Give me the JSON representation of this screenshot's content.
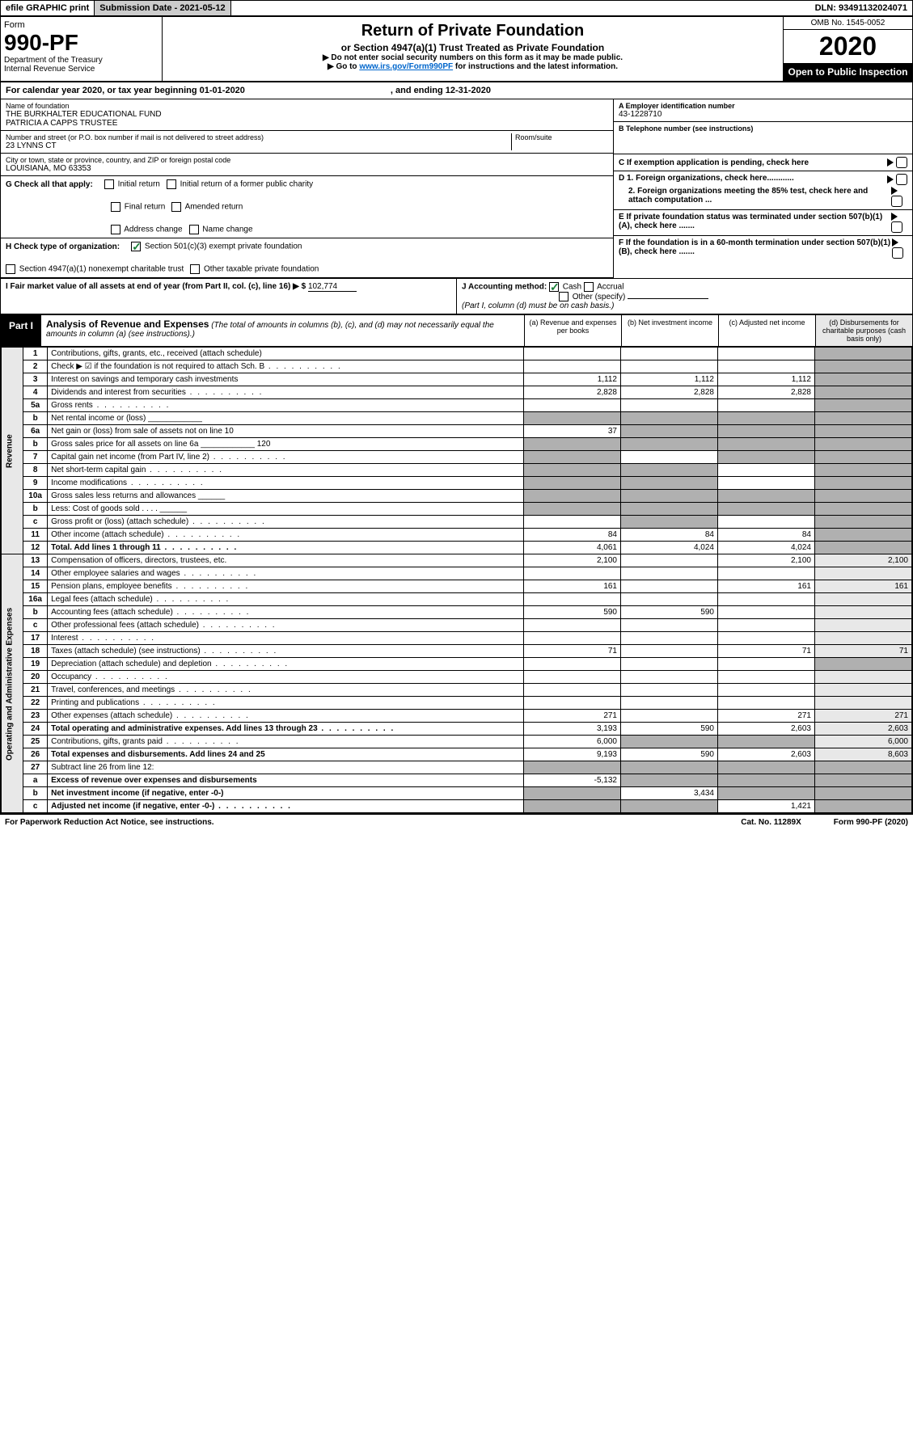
{
  "top": {
    "efile": "efile GRAPHIC print",
    "submission": "Submission Date - 2021-05-12",
    "dln": "DLN: 93491132024071"
  },
  "header": {
    "form_label": "Form",
    "form_number": "990-PF",
    "dept1": "Department of the Treasury",
    "dept2": "Internal Revenue Service",
    "title": "Return of Private Foundation",
    "subtitle": "or Section 4947(a)(1) Trust Treated as Private Foundation",
    "instr1": "▶ Do not enter social security numbers on this form as it may be made public.",
    "instr2": "▶ Go to ",
    "instr_link": "www.irs.gov/Form990PF",
    "instr3": " for instructions and the latest information.",
    "omb": "OMB No. 1545-0052",
    "year": "2020",
    "open": "Open to Public Inspection"
  },
  "cal": {
    "text1": "For calendar year 2020, or tax year beginning 01-01-2020",
    "text2": ", and ending 12-31-2020"
  },
  "id": {
    "name_lbl": "Name of foundation",
    "name1": "THE BURKHALTER EDUCATIONAL FUND",
    "name2": "PATRICIA A CAPPS TRUSTEE",
    "addr_lbl": "Number and street (or P.O. box number if mail is not delivered to street address)",
    "addr": "23 LYNNS CT",
    "room_lbl": "Room/suite",
    "city_lbl": "City or town, state or province, country, and ZIP or foreign postal code",
    "city": "LOUISIANA, MO  63353",
    "ein_lbl": "A Employer identification number",
    "ein": "43-1228710",
    "phone_lbl": "B Telephone number (see instructions)",
    "c_lbl": "C If exemption application is pending, check here",
    "d1_lbl": "D 1. Foreign organizations, check here............",
    "d2_lbl": "2. Foreign organizations meeting the 85% test, check here and attach computation ...",
    "e_lbl": "E  If private foundation status was terminated under section 507(b)(1)(A), check here .......",
    "f_lbl": "F  If the foundation is in a 60-month termination under section 507(b)(1)(B), check here ......."
  },
  "g": {
    "lbl": "G Check all that apply:",
    "opts": [
      "Initial return",
      "Initial return of a former public charity",
      "Final return",
      "Amended return",
      "Address change",
      "Name change"
    ]
  },
  "h": {
    "lbl": "H Check type of organization:",
    "o1": "Section 501(c)(3) exempt private foundation",
    "o2": "Section 4947(a)(1) nonexempt charitable trust",
    "o3": "Other taxable private foundation"
  },
  "i": {
    "lbl": "I Fair market value of all assets at end of year (from Part II, col. (c), line 16) ▶ $",
    "val": "102,774"
  },
  "j": {
    "lbl": "J Accounting method:",
    "o1": "Cash",
    "o2": "Accrual",
    "o3": "Other (specify)",
    "note": "(Part I, column (d) must be on cash basis.)"
  },
  "part1": {
    "tag": "Part I",
    "title": "Analysis of Revenue and Expenses",
    "note": "(The total of amounts in columns (b), (c), and (d) may not necessarily equal the amounts in column (a) (see instructions).)",
    "colA": "(a)    Revenue and expenses per books",
    "colB": "(b)   Net investment income",
    "colC": "(c)   Adjusted net income",
    "colD": "(d)   Disbursements for charitable purposes (cash basis only)"
  },
  "revenue_label": "Revenue",
  "expenses_label": "Operating and Administrative Expenses",
  "rows": [
    {
      "n": "1",
      "d": "Contributions, gifts, grants, etc., received (attach schedule)",
      "a": "",
      "b": "",
      "c": "",
      "dS": true
    },
    {
      "n": "2",
      "d": "Check ▶ ☑ if the foundation is not required to attach Sch. B",
      "dots": true,
      "a": "",
      "b": "",
      "c": "",
      "dS": true
    },
    {
      "n": "3",
      "d": "Interest on savings and temporary cash investments",
      "a": "1,112",
      "b": "1,112",
      "c": "1,112",
      "dS": true
    },
    {
      "n": "4",
      "d": "Dividends and interest from securities",
      "dots": true,
      "a": "2,828",
      "b": "2,828",
      "c": "2,828",
      "dS": true
    },
    {
      "n": "5a",
      "d": "Gross rents",
      "dots": true,
      "a": "",
      "b": "",
      "c": "",
      "dS": true
    },
    {
      "n": "b",
      "d": "Net rental income or (loss)  ____________",
      "aS": true,
      "bS": true,
      "cS": true,
      "dS": true
    },
    {
      "n": "6a",
      "d": "Net gain or (loss) from sale of assets not on line 10",
      "a": "37",
      "bS": true,
      "cS": true,
      "dS": true
    },
    {
      "n": "b",
      "d": "Gross sales price for all assets on line 6a ____________ 120",
      "aS": true,
      "bS": true,
      "cS": true,
      "dS": true
    },
    {
      "n": "7",
      "d": "Capital gain net income (from Part IV, line 2)",
      "dots": true,
      "aS": true,
      "b": "",
      "cS": true,
      "dS": true
    },
    {
      "n": "8",
      "d": "Net short-term capital gain",
      "dots": true,
      "aS": true,
      "bS": true,
      "c": "",
      "dS": true
    },
    {
      "n": "9",
      "d": "Income modifications",
      "dots": true,
      "aS": true,
      "bS": true,
      "c": "",
      "dS": true
    },
    {
      "n": "10a",
      "d": "Gross sales less returns and allowances  ______",
      "aS": true,
      "bS": true,
      "cS": true,
      "dS": true
    },
    {
      "n": "b",
      "d": "Less: Cost of goods sold   . . . .  ______",
      "aS": true,
      "bS": true,
      "cS": true,
      "dS": true
    },
    {
      "n": "c",
      "d": "Gross profit or (loss) (attach schedule)",
      "dots": true,
      "a": "",
      "bS": true,
      "c": "",
      "dS": true
    },
    {
      "n": "11",
      "d": "Other income (attach schedule)",
      "dots": true,
      "a": "84",
      "b": "84",
      "c": "84",
      "dS": true
    },
    {
      "n": "12",
      "d": "Total. Add lines 1 through 11",
      "dots": true,
      "bold": true,
      "a": "4,061",
      "b": "4,024",
      "c": "4,024",
      "dS": true
    }
  ],
  "exp_rows": [
    {
      "n": "13",
      "d": "Compensation of officers, directors, trustees, etc.",
      "a": "2,100",
      "b": "",
      "c": "2,100",
      "dd": "2,100"
    },
    {
      "n": "14",
      "d": "Other employee salaries and wages",
      "dots": true,
      "a": "",
      "b": "",
      "c": "",
      "dd": ""
    },
    {
      "n": "15",
      "d": "Pension plans, employee benefits",
      "dots": true,
      "a": "161",
      "b": "",
      "c": "161",
      "dd": "161"
    },
    {
      "n": "16a",
      "d": "Legal fees (attach schedule)",
      "dots": true,
      "a": "",
      "b": "",
      "c": "",
      "dd": ""
    },
    {
      "n": "b",
      "d": "Accounting fees (attach schedule)",
      "dots": true,
      "a": "590",
      "b": "590",
      "c": "",
      "dd": ""
    },
    {
      "n": "c",
      "d": "Other professional fees (attach schedule)",
      "dots": true,
      "a": "",
      "b": "",
      "c": "",
      "dd": ""
    },
    {
      "n": "17",
      "d": "Interest",
      "dots": true,
      "a": "",
      "b": "",
      "c": "",
      "dd": ""
    },
    {
      "n": "18",
      "d": "Taxes (attach schedule) (see instructions)",
      "dots": true,
      "a": "71",
      "b": "",
      "c": "71",
      "dd": "71"
    },
    {
      "n": "19",
      "d": "Depreciation (attach schedule) and depletion",
      "dots": true,
      "a": "",
      "b": "",
      "c": "",
      "dS": true
    },
    {
      "n": "20",
      "d": "Occupancy",
      "dots": true,
      "a": "",
      "b": "",
      "c": "",
      "dd": ""
    },
    {
      "n": "21",
      "d": "Travel, conferences, and meetings",
      "dots": true,
      "a": "",
      "b": "",
      "c": "",
      "dd": ""
    },
    {
      "n": "22",
      "d": "Printing and publications",
      "dots": true,
      "a": "",
      "b": "",
      "c": "",
      "dd": ""
    },
    {
      "n": "23",
      "d": "Other expenses (attach schedule)",
      "dots": true,
      "a": "271",
      "b": "",
      "c": "271",
      "dd": "271"
    },
    {
      "n": "24",
      "d": "Total operating and administrative expenses. Add lines 13 through 23",
      "dots": true,
      "bold": true,
      "a": "3,193",
      "b": "590",
      "c": "2,603",
      "dd": "2,603"
    },
    {
      "n": "25",
      "d": "Contributions, gifts, grants paid",
      "dots": true,
      "a": "6,000",
      "bS": true,
      "cS": true,
      "dd": "6,000"
    },
    {
      "n": "26",
      "d": "Total expenses and disbursements. Add lines 24 and 25",
      "bold": true,
      "a": "9,193",
      "b": "590",
      "c": "2,603",
      "dd": "8,603"
    },
    {
      "n": "27",
      "d": "Subtract line 26 from line 12:",
      "aS": true,
      "bS": true,
      "cS": true,
      "dS": true
    },
    {
      "n": "a",
      "d": "Excess of revenue over expenses and disbursements",
      "bold": true,
      "a": "-5,132",
      "bS": true,
      "cS": true,
      "dS": true
    },
    {
      "n": "b",
      "d": "Net investment income (if negative, enter -0-)",
      "bold": true,
      "aS": true,
      "b": "3,434",
      "cS": true,
      "dS": true
    },
    {
      "n": "c",
      "d": "Adjusted net income (if negative, enter -0-)",
      "dots": true,
      "bold": true,
      "aS": true,
      "bS": true,
      "c": "1,421",
      "dS": true
    }
  ],
  "footer": {
    "left": "For Paperwork Reduction Act Notice, see instructions.",
    "mid": "Cat. No. 11289X",
    "right": "Form 990-PF (2020)"
  }
}
